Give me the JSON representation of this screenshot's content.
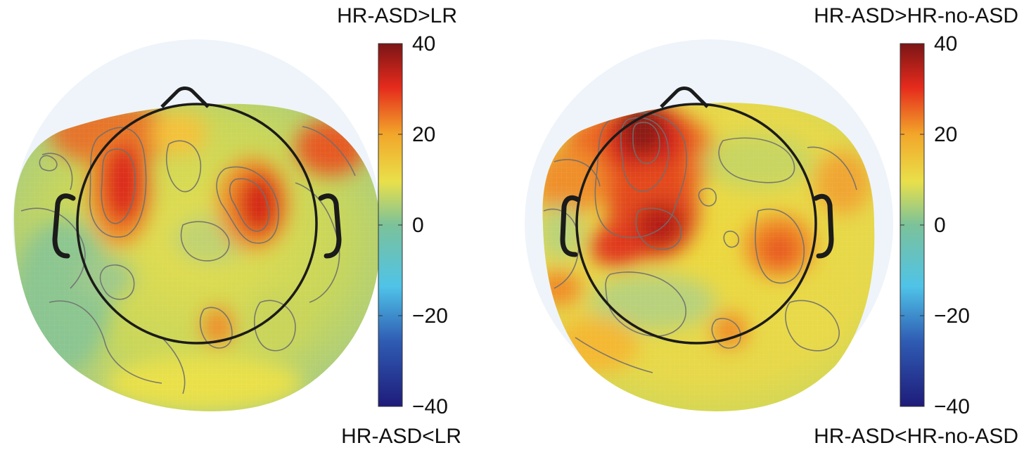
{
  "chart_data": [
    {
      "type": "heatmap",
      "top_label": "HR-ASD>LR",
      "bottom_label": "HR-ASD<LR",
      "colorbar": {
        "min": -40,
        "max": 40,
        "ticks": [
          40,
          20,
          0,
          -20,
          -40
        ],
        "tick_labels": [
          "40",
          "20",
          "0",
          "−20",
          "−40"
        ]
      },
      "colormap": [
        "#1e1b7a",
        "#2f5cb3",
        "#4fc3e8",
        "#7bc29a",
        "#e9e04a",
        "#f2a62a",
        "#e52a1c",
        "#7a1616"
      ]
    },
    {
      "type": "heatmap",
      "top_label": "HR-ASD>HR-no-ASD",
      "bottom_label": "HR-ASD<HR-no-ASD",
      "colorbar": {
        "min": -40,
        "max": 40,
        "ticks": [
          40,
          20,
          0,
          -20,
          -40
        ],
        "tick_labels": [
          "40",
          "20",
          "0",
          "−20",
          "−40"
        ]
      },
      "colormap": [
        "#1e1b7a",
        "#2f5cb3",
        "#4fc3e8",
        "#7bc29a",
        "#e9e04a",
        "#f2a62a",
        "#e52a1c",
        "#7a1616"
      ]
    }
  ]
}
